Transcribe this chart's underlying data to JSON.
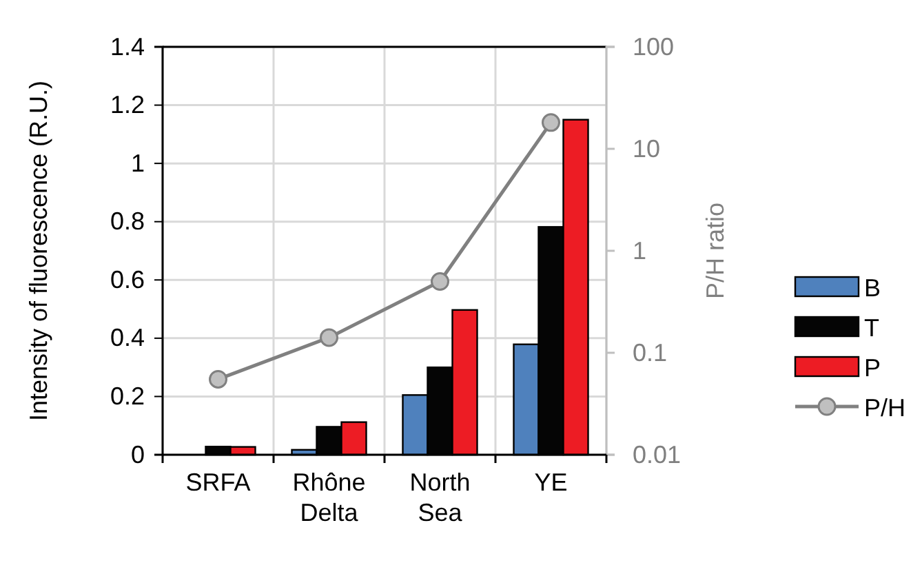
{
  "chart_data": {
    "type": "bar",
    "ylabel": "Intensity of fluorescence (R.U.)",
    "y2label": "P/H ratio",
    "categories": [
      "SRFA",
      "Rhône Delta",
      "North Sea",
      "YE"
    ],
    "series": [
      {
        "name": "B",
        "color": "#4f81bd",
        "values": [
          0,
          0.017,
          0.205,
          0.379
        ]
      },
      {
        "name": "T",
        "color": "#050505",
        "values": [
          0.028,
          0.096,
          0.3,
          0.782
        ]
      },
      {
        "name": "P",
        "color": "#ed1c24",
        "values": [
          0.027,
          0.112,
          0.497,
          1.15
        ]
      },
      {
        "name": "P/H",
        "type": "line",
        "axis": "y2",
        "color": "#808080",
        "marker": "circle",
        "values": [
          0.055,
          0.141,
          0.5,
          18.1
        ]
      }
    ],
    "ylim": [
      0,
      1.4
    ],
    "yticks": [
      0,
      0.2,
      0.4,
      0.6,
      0.8,
      1,
      1.2,
      1.4
    ],
    "y2lim": [
      0.01,
      100
    ],
    "y2ticks": [
      0.01,
      0.1,
      1,
      10,
      100
    ],
    "log": "y2",
    "grid": true,
    "legend": "right"
  }
}
